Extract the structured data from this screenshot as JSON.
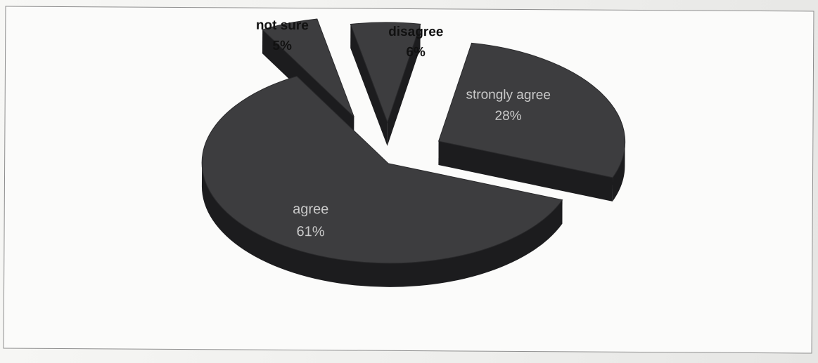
{
  "chart_data": {
    "type": "pie",
    "title": "",
    "three_d": true,
    "exploded_slices": [
      "strongly agree",
      "disagree",
      "not sure"
    ],
    "colors": {
      "top": "#3d3d3f",
      "side": "#1c1c1e",
      "label_dark": "#111111",
      "label_light": "#c9c9c9"
    },
    "slices": [
      {
        "label": "strongly agree",
        "value": 28,
        "pct_label": "28%"
      },
      {
        "label": "agree",
        "value": 61,
        "pct_label": "61%"
      },
      {
        "label": "not sure",
        "value": 5,
        "pct_label": "5%"
      },
      {
        "label": "disagree",
        "value": 6,
        "pct_label": "6%"
      }
    ]
  }
}
